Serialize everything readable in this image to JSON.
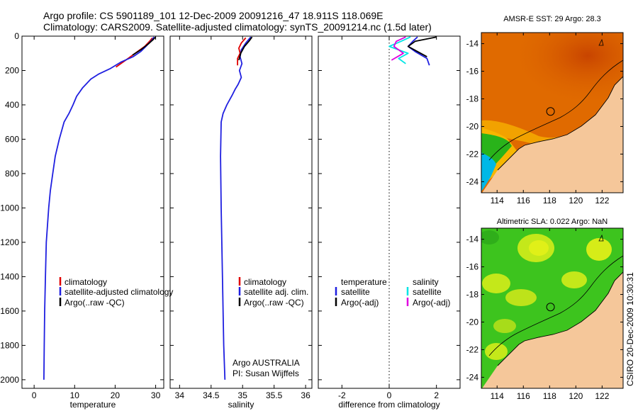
{
  "header": {
    "title1": "Argo profile: CS 5901189_101 12-Dec-2009 20091216_47 18.911S 118.069E",
    "title2": "Climatology: CARS2009. Satellite-adjusted climatology: synTS_20091214.nc (1.5d later)"
  },
  "side_label": "CSIRO  20-Dec-2009 10:30:31",
  "chart_data": [
    {
      "id": "temperature",
      "type": "line",
      "xlabel": "temperature",
      "ylabel": "",
      "xlim": [
        -3,
        32
      ],
      "ylim": [
        2050,
        0
      ],
      "xticks": [
        0,
        10,
        20,
        30
      ],
      "yticks": [
        0,
        200,
        400,
        600,
        800,
        1000,
        1200,
        1400,
        1600,
        1800,
        2000
      ],
      "grid": false,
      "legend": {
        "position": "lower-right",
        "entries": [
          {
            "label": "climatology",
            "color": "#e00000"
          },
          {
            "label": "satellite-adjusted climatology",
            "color": "#1f1fe0"
          },
          {
            "label": "Argo(..raw -QC)",
            "color": "#000000"
          }
        ]
      },
      "series": [
        {
          "name": "climatology",
          "color": "#e00000",
          "x": [
            29.2,
            28.5,
            27.3,
            25.5,
            23.2,
            20.2
          ],
          "y": [
            10,
            30,
            60,
            90,
            130,
            180
          ]
        },
        {
          "name": "satellite-adjusted climatology",
          "color": "#1f1fe0",
          "x": [
            29.6,
            29.0,
            27.8,
            26.3,
            24.4,
            21.5,
            18.7,
            16.0,
            14.0,
            13.0,
            12.0,
            10.5,
            9.6,
            8.6,
            7.4,
            6.2,
            5.2,
            4.6,
            4.0,
            3.6,
            3.3,
            3.0,
            2.8,
            2.6,
            2.5,
            2.4
          ],
          "y": [
            5,
            25,
            55,
            90,
            120,
            150,
            190,
            220,
            250,
            275,
            300,
            350,
            400,
            450,
            500,
            600,
            700,
            800,
            900,
            1000,
            1100,
            1200,
            1400,
            1600,
            1800,
            2000
          ]
        },
        {
          "name": "Argo(..raw -QC)",
          "color": "#000000",
          "x": [
            30.0,
            29.4,
            28.2,
            26.3,
            24.3
          ],
          "y": [
            5,
            20,
            45,
            80,
            110
          ]
        }
      ]
    },
    {
      "id": "salinity",
      "type": "line",
      "xlabel": "salinity",
      "ylabel": "",
      "xlim": [
        33.85,
        36.1
      ],
      "ylim": [
        2050,
        0
      ],
      "xticks": [
        34,
        34.5,
        35,
        35.5,
        36
      ],
      "grid": false,
      "legend": {
        "position": "lower-right",
        "entries": [
          {
            "label": "climatology",
            "color": "#e00000"
          },
          {
            "label": "satellite adj. clim.",
            "color": "#1f1fe0"
          },
          {
            "label": "Argo(..raw -QC)",
            "color": "#000000"
          }
        ]
      },
      "annotations": [
        "Argo AUSTRALIA",
        "PI: Susan Wijffels"
      ],
      "series": [
        {
          "name": "climatology",
          "color": "#e00000",
          "x": [
            35.05,
            34.98,
            34.94,
            34.96,
            34.92,
            34.92
          ],
          "y": [
            10,
            40,
            70,
            100,
            130,
            170
          ]
        },
        {
          "name": "satellite adj. clim.",
          "color": "#1f1fe0",
          "x": [
            35.13,
            35.05,
            34.98,
            34.96,
            34.99,
            34.95,
            34.98,
            34.93,
            34.88,
            34.84,
            34.75,
            34.69,
            34.66,
            34.65,
            34.66,
            34.68,
            34.7,
            34.72
          ],
          "y": [
            5,
            40,
            80,
            120,
            160,
            200,
            240,
            280,
            310,
            340,
            400,
            450,
            500,
            700,
            1000,
            1400,
            1800,
            2000
          ]
        },
        {
          "name": "Argo(..raw -QC)",
          "color": "#000000",
          "x": [
            35.15,
            35.1,
            35.03,
            34.97,
            34.94
          ],
          "y": [
            5,
            30,
            60,
            100,
            140
          ]
        }
      ]
    },
    {
      "id": "difference",
      "type": "line",
      "xlabel": "difference from climatology",
      "ylabel": "",
      "xlim": [
        -3,
        3
      ],
      "ylim": [
        2050,
        0
      ],
      "xticks": [
        -2,
        0,
        2
      ],
      "grid": false,
      "zero_line": true,
      "legend": {
        "position": "lower-right",
        "entries": [
          {
            "label": "temperature",
            "color": ""
          },
          {
            "label": "satellite",
            "color": "#1f1fe0"
          },
          {
            "label": "Argo(-adj)",
            "color": "#000000"
          },
          {
            "label": "salinity",
            "color": ""
          },
          {
            "label": "satellite",
            "color": "#00e5e5"
          },
          {
            "label": "Argo(-adj)",
            "color": "#e000e0"
          }
        ]
      },
      "series": [
        {
          "name": "temperature satellite",
          "color": "#1f1fe0",
          "x": [
            1.2,
            1.0,
            0.8,
            1.1,
            1.6,
            1.7
          ],
          "y": [
            5,
            30,
            60,
            90,
            130,
            170
          ]
        },
        {
          "name": "temperature Argo(-adj)",
          "color": "#000000",
          "x": [
            2.0,
            1.1,
            0.8,
            1.2,
            1.6
          ],
          "y": [
            5,
            30,
            60,
            90,
            120
          ]
        },
        {
          "name": "salinity satellite",
          "color": "#00e5e5",
          "x": [
            0.9,
            0.5,
            0.0,
            0.8,
            0.4,
            0.7
          ],
          "y": [
            5,
            30,
            60,
            100,
            130,
            160
          ]
        },
        {
          "name": "salinity Argo(-adj)",
          "color": "#e000e0",
          "x": [
            0.7,
            0.3,
            0.2,
            0.6,
            0.1
          ],
          "y": [
            5,
            30,
            60,
            100,
            140
          ]
        }
      ]
    },
    {
      "id": "sst_map",
      "type": "heatmap",
      "title": "AMSR-E SST: 29 Argo: 28.3",
      "xlim": [
        112.8,
        123.6
      ],
      "ylim": [
        -24.8,
        -13.2
      ],
      "xticks": [
        114,
        116,
        118,
        120,
        122
      ],
      "yticks": [
        -14,
        -16,
        -18,
        -20,
        -22,
        -24
      ],
      "profile_location": {
        "lon": 118.069,
        "lat": -18.911
      }
    },
    {
      "id": "sla_map",
      "type": "heatmap",
      "title": "Altimetric SLA: 0.022 Argo: NaN",
      "xlim": [
        112.8,
        123.6
      ],
      "ylim": [
        -24.8,
        -13.2
      ],
      "xticks": [
        114,
        116,
        118,
        120,
        122
      ],
      "yticks": [
        -14,
        -16,
        -18,
        -20,
        -22,
        -24
      ],
      "profile_location": {
        "lon": 118.069,
        "lat": -18.911
      }
    }
  ],
  "colors": {
    "land": "#f5c79a",
    "sst_warm": "#e06a00",
    "sst_mid": "#f2a200",
    "sst_green": "#29b31a",
    "sst_cyan": "#00b8e6",
    "sla_green": "#3dc41e",
    "sla_yellow": "#d9ec16"
  }
}
